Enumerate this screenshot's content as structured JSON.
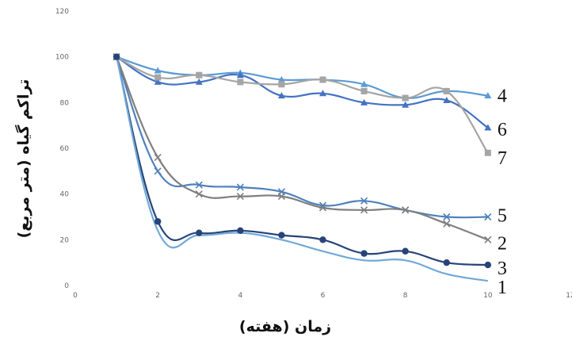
{
  "chart_data": {
    "type": "line",
    "xlabel": "زمان (هفته)",
    "ylabel": "تراکم گیاه (متر مربع)",
    "xlim": [
      0,
      12
    ],
    "ylim": [
      0,
      120
    ],
    "x_ticks": [
      "0",
      "2",
      "4",
      "6",
      "8",
      "10",
      "12"
    ],
    "y_ticks": [
      "0",
      "20",
      "40",
      "60",
      "80",
      "100",
      "120"
    ],
    "grid": false,
    "x": [
      1,
      2,
      3,
      4,
      5,
      6,
      7,
      8,
      9,
      10
    ],
    "series": [
      {
        "name": "4",
        "color": "#5b9bd5",
        "marker": "triangle",
        "values": [
          100,
          94,
          92,
          93,
          90,
          90,
          88,
          82,
          85,
          83
        ]
      },
      {
        "name": "6",
        "color": "#4472c4",
        "marker": "triangle",
        "values": [
          100,
          89,
          89,
          92,
          83,
          84,
          80,
          79,
          81,
          69
        ]
      },
      {
        "name": "7",
        "color": "#a5a5a5",
        "marker": "square",
        "values": [
          100,
          91,
          92,
          89,
          88,
          90,
          85,
          82,
          85,
          58
        ]
      },
      {
        "name": "5",
        "color": "#4f81bd",
        "marker": "x",
        "values": [
          100,
          50,
          44,
          43,
          41,
          35,
          37,
          33,
          30,
          30
        ]
      },
      {
        "name": "2",
        "color": "#7f7f7f",
        "marker": "x",
        "values": [
          100,
          56,
          40,
          39,
          39,
          34,
          33,
          33,
          27,
          20
        ]
      },
      {
        "name": "3",
        "color": "#264478",
        "marker": "circle",
        "values": [
          100,
          28,
          23,
          24,
          22,
          20,
          14,
          15,
          10,
          9
        ]
      },
      {
        "name": "1",
        "color": "#70a9d8",
        "marker": "none",
        "values": [
          100,
          24,
          22,
          23,
          20,
          15,
          11,
          11,
          5,
          2
        ]
      }
    ]
  }
}
